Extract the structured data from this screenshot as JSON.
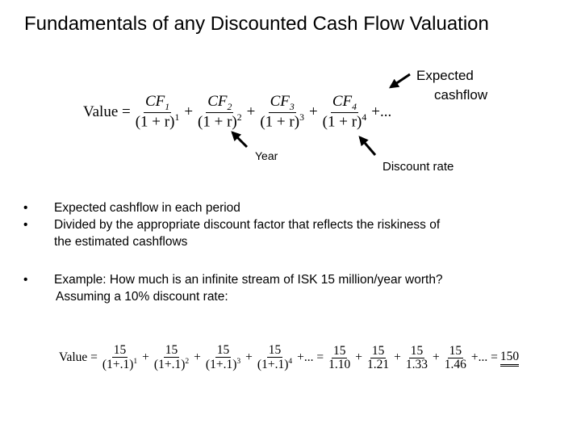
{
  "slide": {
    "title": "Fundamentals of any Discounted Cash Flow Valuation",
    "labels": {
      "expected_line1": "Expected",
      "expected_line2": "cashflow",
      "year": "Year",
      "discount_rate": "Discount rate"
    },
    "formula1": {
      "lhs": "Value =",
      "terms": [
        {
          "num": "CF",
          "num_sub": "1",
          "den": "(1 + r)",
          "den_sup": "1"
        },
        {
          "num": "CF",
          "num_sub": "2",
          "den": "(1 + r)",
          "den_sup": "2"
        },
        {
          "num": "CF",
          "num_sub": "3",
          "den": "(1 + r)",
          "den_sup": "3"
        },
        {
          "num": "CF",
          "num_sub": "4",
          "den": "(1 + r)",
          "den_sup": "4"
        }
      ],
      "plus": "+",
      "ellipsis": "+...",
      "tail": ""
    },
    "bullets": [
      {
        "text": "Expected cashflow in each period"
      },
      {
        "text": "Divided by the appropriate discount factor that reflects the riskiness of",
        "cont": "the estimated cashflows"
      },
      {
        "text": "Example: How much is an infinite stream of ISK 15 million/year worth?",
        "cont": "Assuming a 10% discount rate:"
      }
    ],
    "bullet_char": "•",
    "formula2": {
      "lhs": "Value =",
      "terms_a": [
        {
          "num": "15",
          "den": "(1+.1)",
          "den_sup": "1"
        },
        {
          "num": "15",
          "den": "(1+.1)",
          "den_sup": "2"
        },
        {
          "num": "15",
          "den": "(1+.1)",
          "den_sup": "3"
        },
        {
          "num": "15",
          "den": "(1+.1)",
          "den_sup": "4"
        }
      ],
      "mid": "+... =",
      "terms_b": [
        {
          "num": "15",
          "den": "1.10"
        },
        {
          "num": "15",
          "den": "1.21"
        },
        {
          "num": "15",
          "den": "1.33"
        },
        {
          "num": "15",
          "den": "1.46"
        }
      ],
      "end": "+... =",
      "result": "150",
      "plus": "+"
    }
  }
}
